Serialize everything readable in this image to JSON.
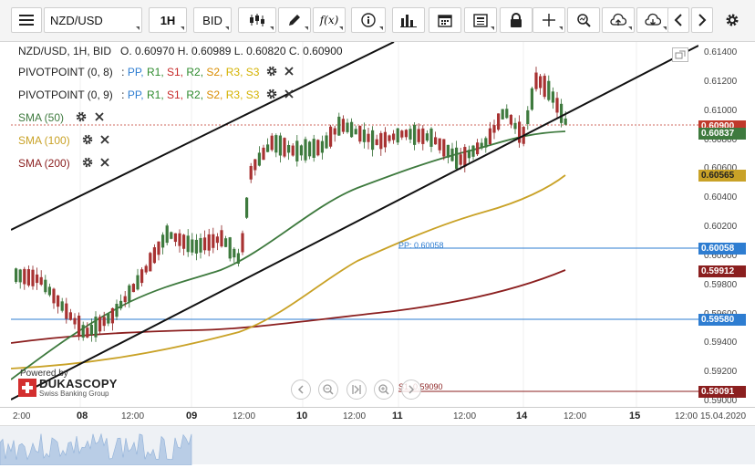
{
  "toolbar": {
    "symbol": "NZD/USD",
    "timeframe": "1H",
    "side": "BID",
    "icons": [
      "menu-icon",
      "candlestick-icon",
      "pencil-icon",
      "function-icon",
      "info-icon",
      "bar-chart-icon",
      "calendar-icon",
      "news-icon",
      "lock-icon",
      "crosshair-icon",
      "zoom-icon",
      "cloud-upload-icon",
      "cloud-download-icon",
      "chevron-left-icon",
      "chevron-right-icon",
      "gear-icon"
    ]
  },
  "ohlc": "NZD/USD, 1H, BID   O. 0.60970 H. 0.60989 L. 0.60820 C. 0.60900",
  "indicators": [
    {
      "name": "PIVOTPOINT (0, 8)",
      "levels": [
        "PP",
        "R1",
        "S1",
        "R2",
        "S2",
        "R3",
        "S3"
      ]
    },
    {
      "name": "PIVOTPOINT (0, 9)",
      "levels": [
        "PP",
        "R1",
        "S1",
        "R2",
        "S2",
        "R3",
        "S3"
      ]
    },
    {
      "name": "SMA (50)",
      "color": "#3e7a3e"
    },
    {
      "name": "SMA (100)",
      "color": "#c9a227"
    },
    {
      "name": "SMA (200)",
      "color": "#8b1f1f"
    }
  ],
  "level_colors": {
    "PP": "#2e7dd1",
    "R1": "#2e8b2e",
    "S1": "#c62828",
    "R2": "#2e8b2e",
    "S2": "#d98c00",
    "R3": "#d4b200",
    "S3": "#d4b200"
  },
  "price_labels": [
    "0.61400",
    "0.61200",
    "0.61000",
    "0.60800",
    "0.60600",
    "0.60400",
    "0.60200",
    "0.60000",
    "0.59800",
    "0.59600",
    "0.59400",
    "0.59200",
    "0.59000"
  ],
  "price_tags": [
    {
      "value": "0.60900",
      "bg": "#c0392b",
      "fg": "#ffffff"
    },
    {
      "value": "0.60837",
      "bg": "#3e7a3e",
      "fg": "#ffffff"
    },
    {
      "value": "0.60565",
      "bg": "#c9a227",
      "fg": "#222222"
    },
    {
      "value": "0.60058",
      "bg": "#2e7dd1",
      "fg": "#ffffff"
    },
    {
      "value": "0.59912",
      "bg": "#8b1f1f",
      "fg": "#ffffff"
    },
    {
      "value": "0.59580",
      "bg": "#2e7dd1",
      "fg": "#ffffff"
    },
    {
      "value": "0.59091",
      "bg": "#8b1f1f",
      "fg": "#ffffff"
    }
  ],
  "chart_labels": {
    "pp": "PP: 0.60058",
    "s1": "S1: 0.59090"
  },
  "time_labels": [
    {
      "text": "2:00",
      "major": false
    },
    {
      "text": "08",
      "major": true
    },
    {
      "text": "12:00",
      "major": false
    },
    {
      "text": "09",
      "major": true
    },
    {
      "text": "12:00",
      "major": false
    },
    {
      "text": "10",
      "major": true
    },
    {
      "text": "12:00",
      "major": false
    },
    {
      "text": "11",
      "major": true
    },
    {
      "text": "12:00",
      "major": false
    },
    {
      "text": "14",
      "major": true
    },
    {
      "text": "12:00",
      "major": false
    },
    {
      "text": "15",
      "major": true
    },
    {
      "text": "12:00",
      "major": false
    },
    {
      "text": "15.04.2020",
      "major": false
    }
  ],
  "branding": {
    "powered": "Powered by",
    "name": "DUKASCOPY",
    "tagline": "Swiss Banking Group"
  }
}
